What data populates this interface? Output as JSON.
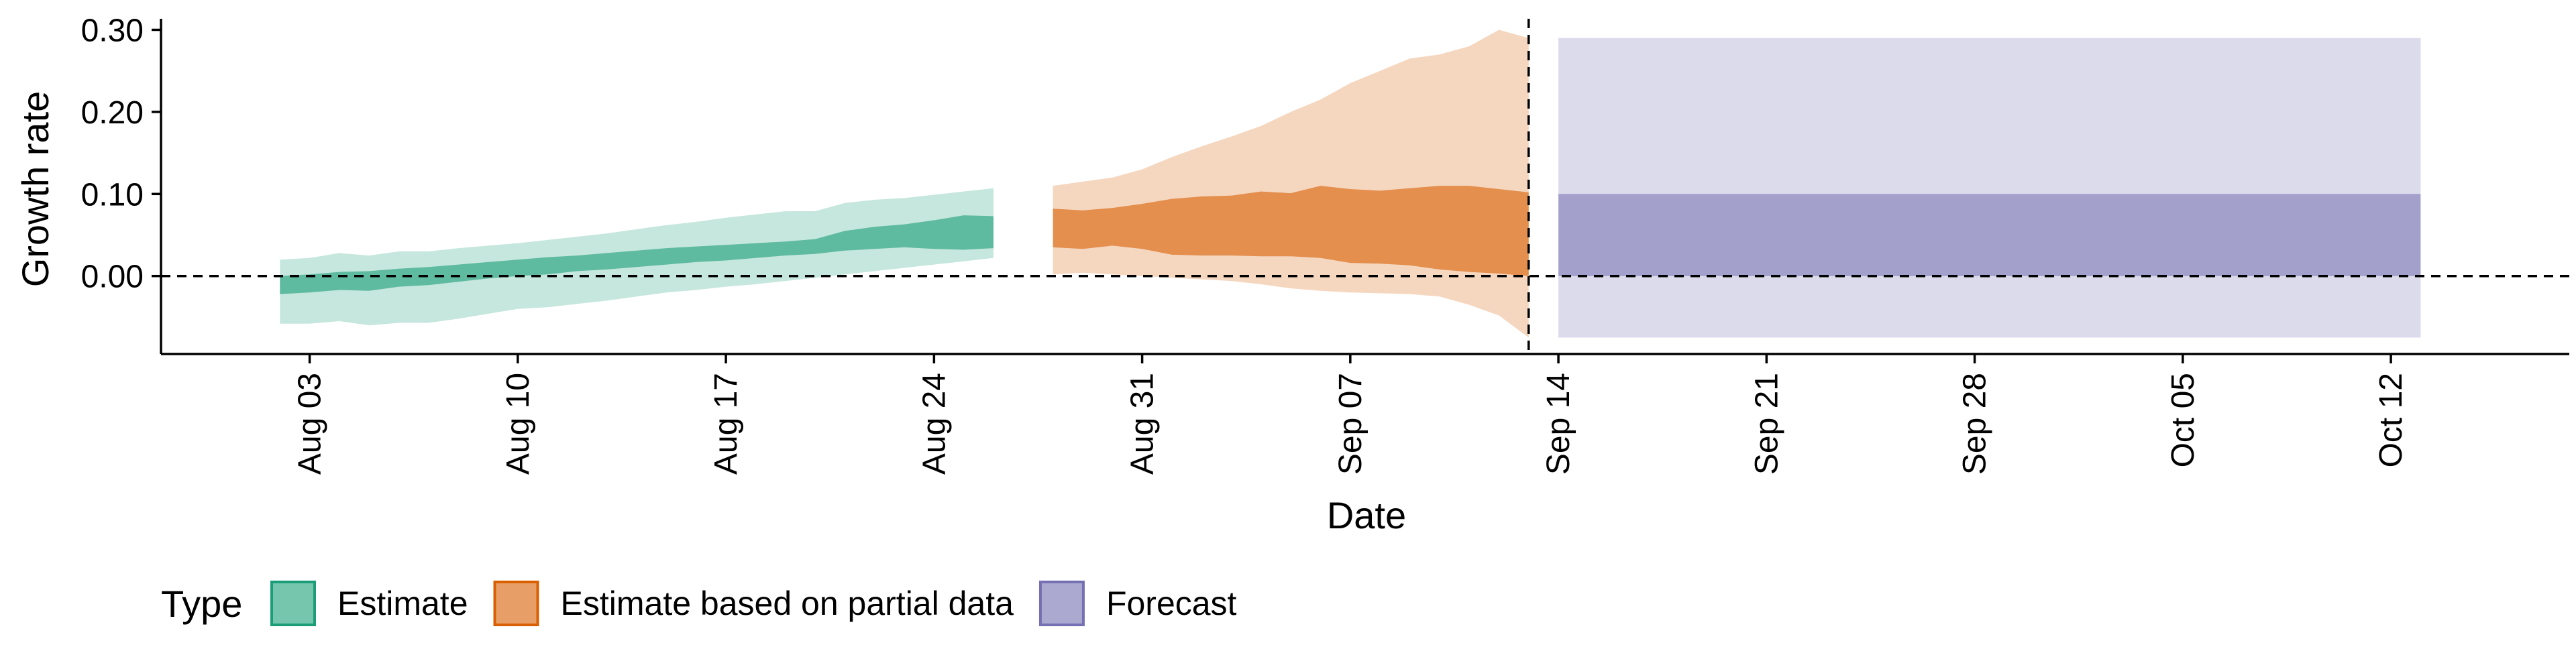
{
  "chart_data": {
    "type": "area",
    "title": "",
    "xlabel": "Date",
    "ylabel": "Growth rate",
    "xlim": [
      "2020-07-29",
      "2020-10-18"
    ],
    "ylim": [
      -0.095,
      0.32
    ],
    "y_ticks": [
      0.0,
      0.1,
      0.2,
      0.3
    ],
    "y_tick_labels": [
      "0.00",
      "0.10",
      "0.20",
      "0.30"
    ],
    "x_ticks": [
      "2020-08-03",
      "2020-08-10",
      "2020-08-17",
      "2020-08-24",
      "2020-08-31",
      "2020-09-07",
      "2020-09-14",
      "2020-09-21",
      "2020-09-28",
      "2020-10-05",
      "2020-10-12"
    ],
    "x_tick_labels": [
      "Aug 03",
      "Aug 10",
      "Aug 17",
      "Aug 24",
      "Aug 31",
      "Sep 07",
      "Sep 14",
      "Sep 21",
      "Sep 28",
      "Oct 05",
      "Oct 12"
    ],
    "reference_lines": {
      "horizontal_y": 0.0,
      "vertical_date": "2020-09-13"
    },
    "grid": false,
    "legend": {
      "title": "Type",
      "placement": "bottom-left"
    },
    "series": [
      {
        "name": "Estimate",
        "color": "#1b9e77",
        "x": [
          "2020-08-02",
          "2020-08-03",
          "2020-08-04",
          "2020-08-05",
          "2020-08-06",
          "2020-08-07",
          "2020-08-08",
          "2020-08-09",
          "2020-08-10",
          "2020-08-11",
          "2020-08-12",
          "2020-08-13",
          "2020-08-14",
          "2020-08-15",
          "2020-08-16",
          "2020-08-17",
          "2020-08-18",
          "2020-08-19",
          "2020-08-20",
          "2020-08-21",
          "2020-08-22",
          "2020-08-23",
          "2020-08-24",
          "2020-08-25",
          "2020-08-26"
        ],
        "lower_90": [
          -0.058,
          -0.058,
          -0.055,
          -0.06,
          -0.057,
          -0.057,
          -0.052,
          -0.046,
          -0.04,
          -0.038,
          -0.034,
          -0.03,
          -0.025,
          -0.02,
          -0.017,
          -0.013,
          -0.01,
          -0.006,
          -0.002,
          0.002,
          0.006,
          0.01,
          0.014,
          0.018,
          0.022
        ],
        "upper_90": [
          0.02,
          0.022,
          0.028,
          0.025,
          0.03,
          0.03,
          0.034,
          0.037,
          0.04,
          0.044,
          0.048,
          0.052,
          0.057,
          0.062,
          0.066,
          0.071,
          0.075,
          0.079,
          0.079,
          0.089,
          0.093,
          0.095,
          0.099,
          0.103,
          0.107
        ],
        "lower_50": [
          -0.022,
          -0.02,
          -0.017,
          -0.018,
          -0.013,
          -0.011,
          -0.007,
          -0.003,
          0.0,
          0.002,
          0.006,
          0.008,
          0.011,
          0.014,
          0.017,
          0.019,
          0.022,
          0.025,
          0.027,
          0.031,
          0.033,
          0.035,
          0.033,
          0.032,
          0.034
        ],
        "upper_50": [
          0.0,
          0.002,
          0.005,
          0.006,
          0.009,
          0.011,
          0.014,
          0.017,
          0.02,
          0.023,
          0.025,
          0.028,
          0.031,
          0.034,
          0.036,
          0.038,
          0.04,
          0.042,
          0.045,
          0.055,
          0.06,
          0.063,
          0.068,
          0.074,
          0.073
        ]
      },
      {
        "name": "Estimate based on partial data",
        "color": "#d95f02",
        "x": [
          "2020-08-28",
          "2020-08-29",
          "2020-08-30",
          "2020-08-31",
          "2020-09-01",
          "2020-09-02",
          "2020-09-03",
          "2020-09-04",
          "2020-09-05",
          "2020-09-06",
          "2020-09-07",
          "2020-09-08",
          "2020-09-09",
          "2020-09-10",
          "2020-09-11",
          "2020-09-12",
          "2020-09-13"
        ],
        "lower_90": [
          0.002,
          0.004,
          0.002,
          0.0,
          -0.002,
          -0.004,
          -0.006,
          -0.01,
          -0.015,
          -0.018,
          -0.02,
          -0.021,
          -0.022,
          -0.025,
          -0.035,
          -0.048,
          -0.075
        ],
        "upper_90": [
          0.11,
          0.115,
          0.12,
          0.13,
          0.145,
          0.158,
          0.17,
          0.183,
          0.2,
          0.215,
          0.235,
          0.25,
          0.265,
          0.27,
          0.28,
          0.3,
          0.29
        ],
        "lower_50": [
          0.035,
          0.033,
          0.037,
          0.033,
          0.026,
          0.025,
          0.025,
          0.024,
          0.024,
          0.022,
          0.016,
          0.015,
          0.013,
          0.008,
          0.005,
          0.003,
          0.0
        ],
        "upper_50": [
          0.082,
          0.08,
          0.083,
          0.088,
          0.094,
          0.097,
          0.098,
          0.103,
          0.101,
          0.11,
          0.106,
          0.104,
          0.107,
          0.11,
          0.11,
          0.106,
          0.102
        ]
      },
      {
        "name": "Forecast",
        "color": "#7570b3",
        "x": [
          "2020-09-14",
          "2020-10-13"
        ],
        "lower_90": [
          -0.075,
          -0.075
        ],
        "upper_90": [
          0.29,
          0.29
        ],
        "lower_50": [
          0.0,
          0.0
        ],
        "upper_50": [
          0.1,
          0.1
        ]
      }
    ]
  },
  "colors": {
    "estimate_fill": "#1b9e77",
    "partial_fill": "#d95f02",
    "forecast_fill": "#7570b3",
    "axis": "#000000"
  }
}
